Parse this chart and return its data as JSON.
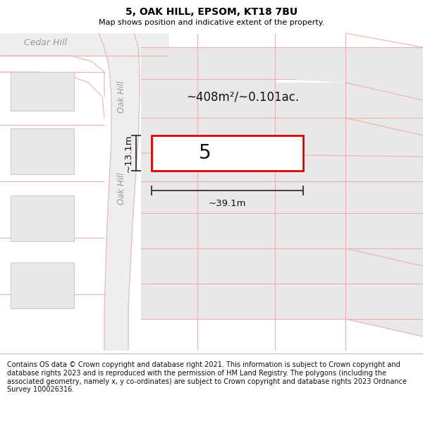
{
  "title": "5, OAK HILL, EPSOM, KT18 7BU",
  "subtitle": "Map shows position and indicative extent of the property.",
  "footer": "Contains OS data © Crown copyright and database right 2021. This information is subject to Crown copyright and database rights 2023 and is reproduced with the permission of HM Land Registry. The polygons (including the associated geometry, namely x, y co-ordinates) are subject to Crown copyright and database rights 2023 Ordnance Survey 100026316.",
  "bg_color": "#ffffff",
  "map_bg": "#ffffff",
  "road_fill": "#eeeeee",
  "road_line": "#e8b0b0",
  "plot_fill": "#e8e8e8",
  "plot_line": "#cccccc",
  "highlight_fill": "#ffffff",
  "highlight_line": "#dd0000",
  "dim_color": "#333333",
  "label_color": "#888888",
  "area_label": "~408m²/~0.101ac.",
  "width_label": "~39.1m",
  "height_label": "~13.1m",
  "plot_number": "5",
  "cedar_hill": "Cedar Hill",
  "oak_hill": "Oak Hill",
  "title_fontsize": 10,
  "subtitle_fontsize": 8,
  "footer_fontsize": 7
}
